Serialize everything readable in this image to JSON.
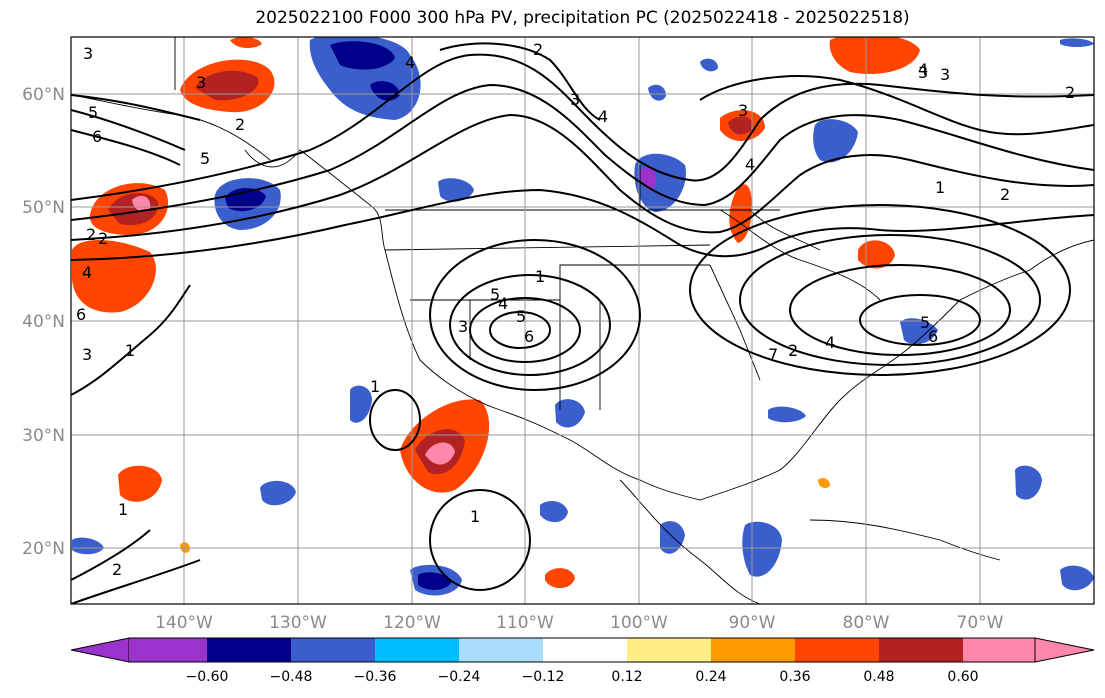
{
  "title": "2025022100 F000 300 hPa PV, precipitation PC (2025022418 - 2025022518)",
  "map": {
    "lon_range": [
      -150,
      -60
    ],
    "lat_range": [
      15,
      65
    ],
    "lat_labels": [
      "60°N",
      "50°N",
      "40°N",
      "30°N",
      "20°N"
    ],
    "lon_labels": [
      "140°W",
      "130°W",
      "120°W",
      "110°W",
      "100°W",
      "90°W",
      "80°W",
      "70°W"
    ],
    "pv_contour_labels": [
      "3",
      "5",
      "6",
      "3",
      "2",
      "4",
      "5",
      "4",
      "2",
      "3",
      "4",
      "3",
      "4",
      "5",
      "6",
      "3",
      "4",
      "3",
      "1",
      "2",
      "3",
      "1",
      "2",
      "1",
      "4",
      "5",
      "6",
      "7",
      "2",
      "4",
      "6",
      "5",
      "3",
      "1",
      "2",
      "2",
      "1",
      "1",
      "2"
    ]
  },
  "colorbar": {
    "ticks": [
      "−0.60",
      "−0.48",
      "−0.36",
      "−0.24",
      "−0.12",
      "0.12",
      "0.24",
      "0.36",
      "0.48",
      "0.60"
    ],
    "colors": [
      "#9933cc",
      "#00008b",
      "#3a5fcd",
      "#00bfff",
      "#aadcff",
      "#ffffff",
      "#ffee88",
      "#ff9900",
      "#ff4500",
      "#b22222",
      "#ff88aa"
    ]
  }
}
